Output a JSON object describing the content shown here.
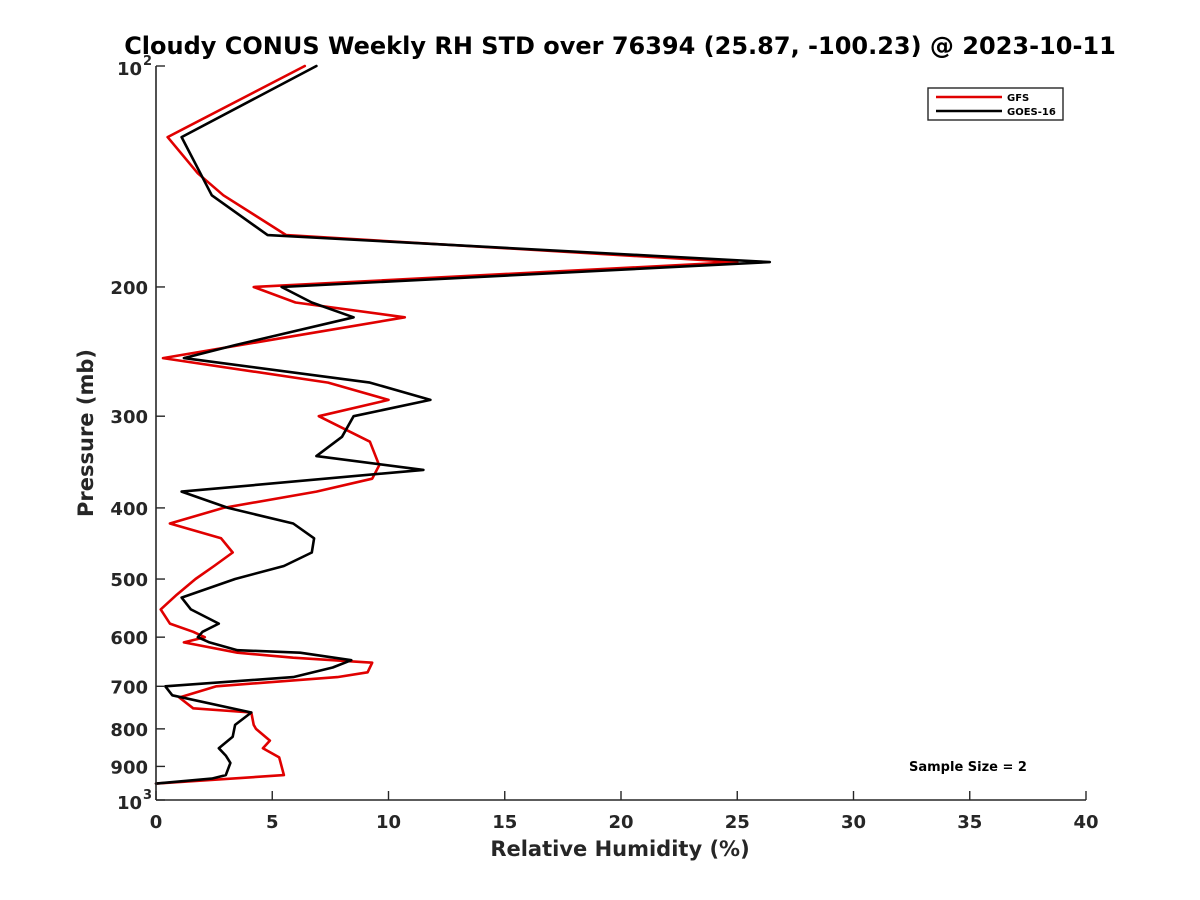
{
  "chart_data": {
    "type": "line",
    "title": "Cloudy CONUS Weekly RH STD over 76394 (25.87, -100.23) @ 2023-10-11",
    "xlabel": "Relative Humidity (%)",
    "ylabel": "Pressure (mb)",
    "xlim": [
      0,
      40
    ],
    "ylim": [
      100,
      1000
    ],
    "yscale": "log",
    "y_reversed": true,
    "x_ticks": [
      "0",
      "5",
      "10",
      "15",
      "20",
      "25",
      "30",
      "35",
      "40"
    ],
    "y_ticks": [
      {
        "value": 100,
        "base": "10",
        "exp": "2"
      },
      {
        "value": 200,
        "label": "200"
      },
      {
        "value": 300,
        "label": "300"
      },
      {
        "value": 400,
        "label": "400"
      },
      {
        "value": 500,
        "label": "500"
      },
      {
        "value": 600,
        "label": "600"
      },
      {
        "value": 700,
        "label": "700"
      },
      {
        "value": 800,
        "label": "800"
      },
      {
        "value": 900,
        "label": "900"
      },
      {
        "value": 1000,
        "base": "10",
        "exp": "3"
      }
    ],
    "legend": {
      "position": "top-right",
      "entries": [
        "GFS",
        "GOES-16"
      ]
    },
    "annotation": "Sample Size = 2",
    "series": [
      {
        "name": "GFS",
        "color": "#e00000",
        "points": [
          [
            6.4,
            100
          ],
          [
            0.5,
            125
          ],
          [
            1.8,
            140
          ],
          [
            2.9,
            150
          ],
          [
            5.6,
            170
          ],
          [
            25.0,
            185
          ],
          [
            4.2,
            200
          ],
          [
            6.0,
            210
          ],
          [
            10.7,
            220
          ],
          [
            0.3,
            250
          ],
          [
            7.4,
            270
          ],
          [
            10.0,
            285
          ],
          [
            7.0,
            300
          ],
          [
            9.2,
            325
          ],
          [
            9.6,
            350
          ],
          [
            9.3,
            365
          ],
          [
            6.9,
            380
          ],
          [
            2.9,
            400
          ],
          [
            0.6,
            420
          ],
          [
            2.8,
            440
          ],
          [
            3.3,
            460
          ],
          [
            2.5,
            480
          ],
          [
            1.7,
            500
          ],
          [
            0.9,
            525
          ],
          [
            0.2,
            550
          ],
          [
            0.6,
            575
          ],
          [
            1.6,
            590
          ],
          [
            2.1,
            600
          ],
          [
            1.2,
            610
          ],
          [
            3.5,
            630
          ],
          [
            5.9,
            640
          ],
          [
            9.3,
            650
          ],
          [
            9.1,
            670
          ],
          [
            7.8,
            680
          ],
          [
            2.6,
            700
          ],
          [
            1.0,
            725
          ],
          [
            1.6,
            750
          ],
          [
            4.1,
            760
          ],
          [
            4.2,
            790
          ],
          [
            4.3,
            800
          ],
          [
            4.9,
            830
          ],
          [
            4.6,
            850
          ],
          [
            5.3,
            875
          ],
          [
            5.4,
            900
          ],
          [
            5.5,
            925
          ],
          [
            0.0,
            950
          ]
        ]
      },
      {
        "name": "GOES-16",
        "color": "#000000",
        "points": [
          [
            6.9,
            100
          ],
          [
            1.1,
            125
          ],
          [
            2.4,
            150
          ],
          [
            4.8,
            170
          ],
          [
            26.4,
            185
          ],
          [
            5.4,
            200
          ],
          [
            6.7,
            210
          ],
          [
            8.5,
            220
          ],
          [
            3.4,
            240
          ],
          [
            1.2,
            250
          ],
          [
            9.2,
            270
          ],
          [
            11.8,
            285
          ],
          [
            8.5,
            300
          ],
          [
            8.0,
            320
          ],
          [
            6.9,
            340
          ],
          [
            11.5,
            355
          ],
          [
            1.1,
            380
          ],
          [
            3.1,
            400
          ],
          [
            5.9,
            420
          ],
          [
            6.8,
            440
          ],
          [
            6.7,
            460
          ],
          [
            5.5,
            480
          ],
          [
            3.4,
            500
          ],
          [
            1.1,
            530
          ],
          [
            1.5,
            550
          ],
          [
            2.7,
            575
          ],
          [
            2.0,
            590
          ],
          [
            1.8,
            600
          ],
          [
            2.3,
            610
          ],
          [
            3.5,
            625
          ],
          [
            6.2,
            630
          ],
          [
            8.4,
            645
          ],
          [
            7.6,
            660
          ],
          [
            5.9,
            680
          ],
          [
            0.4,
            700
          ],
          [
            0.7,
            720
          ],
          [
            4.1,
            760
          ],
          [
            3.4,
            790
          ],
          [
            3.3,
            820
          ],
          [
            2.7,
            850
          ],
          [
            3.0,
            870
          ],
          [
            3.2,
            890
          ],
          [
            3.0,
            925
          ],
          [
            2.4,
            935
          ],
          [
            0.0,
            950
          ]
        ]
      }
    ]
  }
}
